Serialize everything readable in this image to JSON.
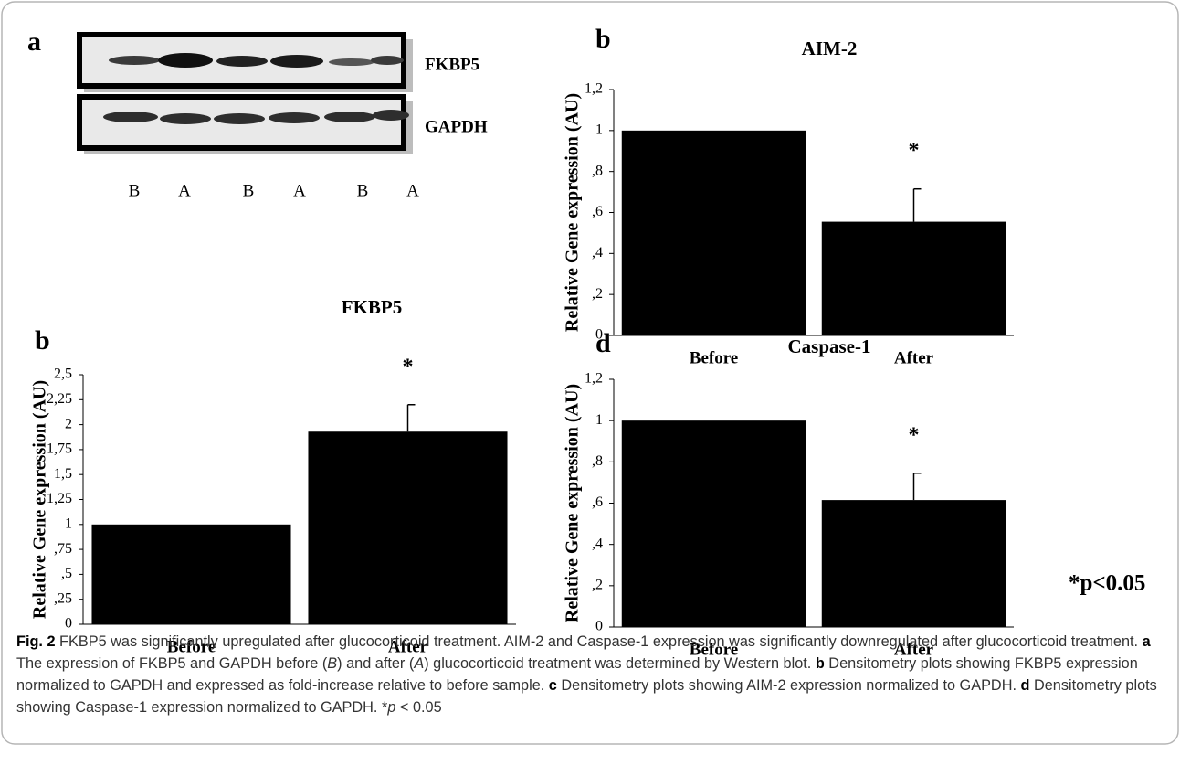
{
  "blot": {
    "panel": "a",
    "rows": [
      "FKBP5",
      "GAPDH"
    ],
    "lanes": [
      "B",
      "A",
      "B",
      "A",
      "B",
      "A"
    ]
  },
  "chart_data": [
    {
      "type": "bar",
      "panel": "b",
      "title": "AIM-2",
      "ylabel": "Relative Gene expression (AU)",
      "categories": [
        "Before",
        "After"
      ],
      "values": [
        1,
        0.555
      ],
      "errors": [
        null,
        0.16
      ],
      "color": "#000000",
      "annotation": "*",
      "ylim": [
        0,
        1.2
      ],
      "yticks": [
        0,
        {
          "value": 0.2,
          "label": ",2"
        },
        {
          "value": 0.4,
          "label": ",4"
        },
        {
          "value": 0.6,
          "label": ",6"
        },
        {
          "value": 0.8,
          "label": ",8"
        },
        1,
        {
          "value": 1.2,
          "label": "1,2"
        }
      ]
    },
    {
      "type": "bar",
      "panel": "b",
      "title": "FKBP5",
      "ylabel": "Relative Gene expression (AU)",
      "categories": [
        "Before",
        "After"
      ],
      "values": [
        1,
        1.93
      ],
      "errors": [
        null,
        0.27
      ],
      "color": "#000000",
      "annotation": "*",
      "ylim": [
        0,
        2.5
      ],
      "yticks": [
        0,
        {
          "value": 0.25,
          "label": ",25"
        },
        {
          "value": 0.5,
          "label": ",5"
        },
        {
          "value": 0.75,
          "label": ",75"
        },
        1,
        {
          "value": 1.25,
          "label": "1,25"
        },
        {
          "value": 1.5,
          "label": "1,5"
        },
        {
          "value": 1.75,
          "label": "1,75"
        },
        2,
        {
          "value": 2.25,
          "label": "2,25"
        },
        {
          "value": 2.5,
          "label": "2,5"
        }
      ]
    },
    {
      "type": "bar",
      "panel": "d",
      "title": "Caspase-1",
      "ylabel": "Relative Gene expression (AU)",
      "categories": [
        "Before",
        "After"
      ],
      "values": [
        1,
        0.615
      ],
      "errors": [
        null,
        0.13
      ],
      "color": "#000000",
      "annotation": "*",
      "ylim": [
        0,
        1.2
      ],
      "yticks": [
        0,
        {
          "value": 0.2,
          "label": ",2"
        },
        {
          "value": 0.4,
          "label": ",4"
        },
        {
          "value": 0.6,
          "label": ",6"
        },
        {
          "value": 0.8,
          "label": ",8"
        },
        1,
        {
          "value": 1.2,
          "label": "1,2"
        }
      ]
    }
  ],
  "note": "*p<0.05",
  "caption": {
    "parts": [
      "Fig. 2",
      " FKBP5 was significantly upregulated after glucocorticoid treatment. AIM-2 and Caspase-1 expression was significantly downregulated after glucocorticoid treatment. ",
      "a",
      " The expression of FKBP5 and GAPDH before (",
      "B",
      ") and after (",
      "A",
      ") glucocorticoid treatment was determined by Western blot. ",
      "b",
      " Densitometry plots showing FKBP5 expression normalized to GAPDH and expressed as fold-increase relative to before sample. ",
      "c",
      " Densitometry plots showing AIM-2 expression normalized to GAPDH. ",
      "d",
      " Densitometry plots showing Caspase-1 expression normalized to GAPDH. *",
      "p",
      " < 0.05"
    ]
  }
}
